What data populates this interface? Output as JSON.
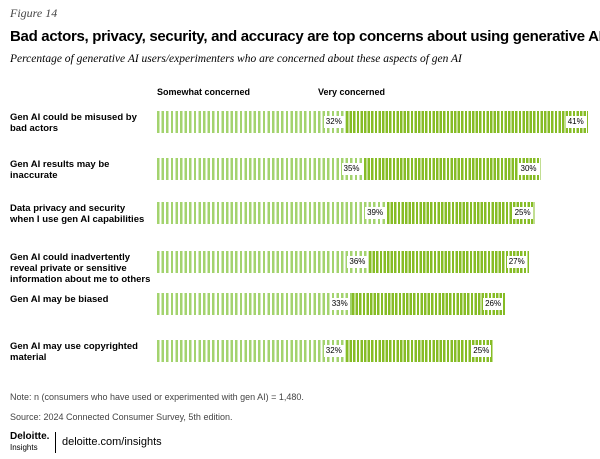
{
  "header": {
    "figure": "Figure 14",
    "title": "Bad actors, privacy, security, and accuracy are top concerns about using generative AI",
    "subtitle": "Percentage of generative AI users/experimenters who are concerned about these aspects of gen AI"
  },
  "chart_data": {
    "type": "stacked-bar-horizontal",
    "categories": [
      "Gen AI could be misused by bad actors",
      "Gen AI results may be inaccurate",
      "Data privacy and security when I use gen AI capabilities",
      "Gen AI could inadvertently reveal private or sensitive information about me to others",
      "Gen AI may be biased",
      "Gen AI may use copyrighted material"
    ],
    "series": [
      {
        "name": "Somewhat concerned",
        "color": "#a3d36e",
        "values": [
          32,
          35,
          39,
          36,
          33,
          32
        ],
        "value_labels": [
          "32%",
          "35%",
          "39%",
          "36%",
          "33%",
          "32%"
        ]
      },
      {
        "name": "Very concerned",
        "color": "#86bc25",
        "values": [
          41,
          30,
          25,
          27,
          26,
          25
        ],
        "value_labels": [
          "41%",
          "30%",
          "25%",
          "27%",
          "26%",
          "25%"
        ]
      }
    ]
  },
  "footer": {
    "note": "Note: n (consumers who have used or experimented with gen AI) = 1,480.",
    "source": "Source: 2024 Connected Consumer Survey, 5th edition.",
    "logo": "Deloitte.",
    "logo_sub": "Insights",
    "url": "deloitte.com/insights"
  }
}
